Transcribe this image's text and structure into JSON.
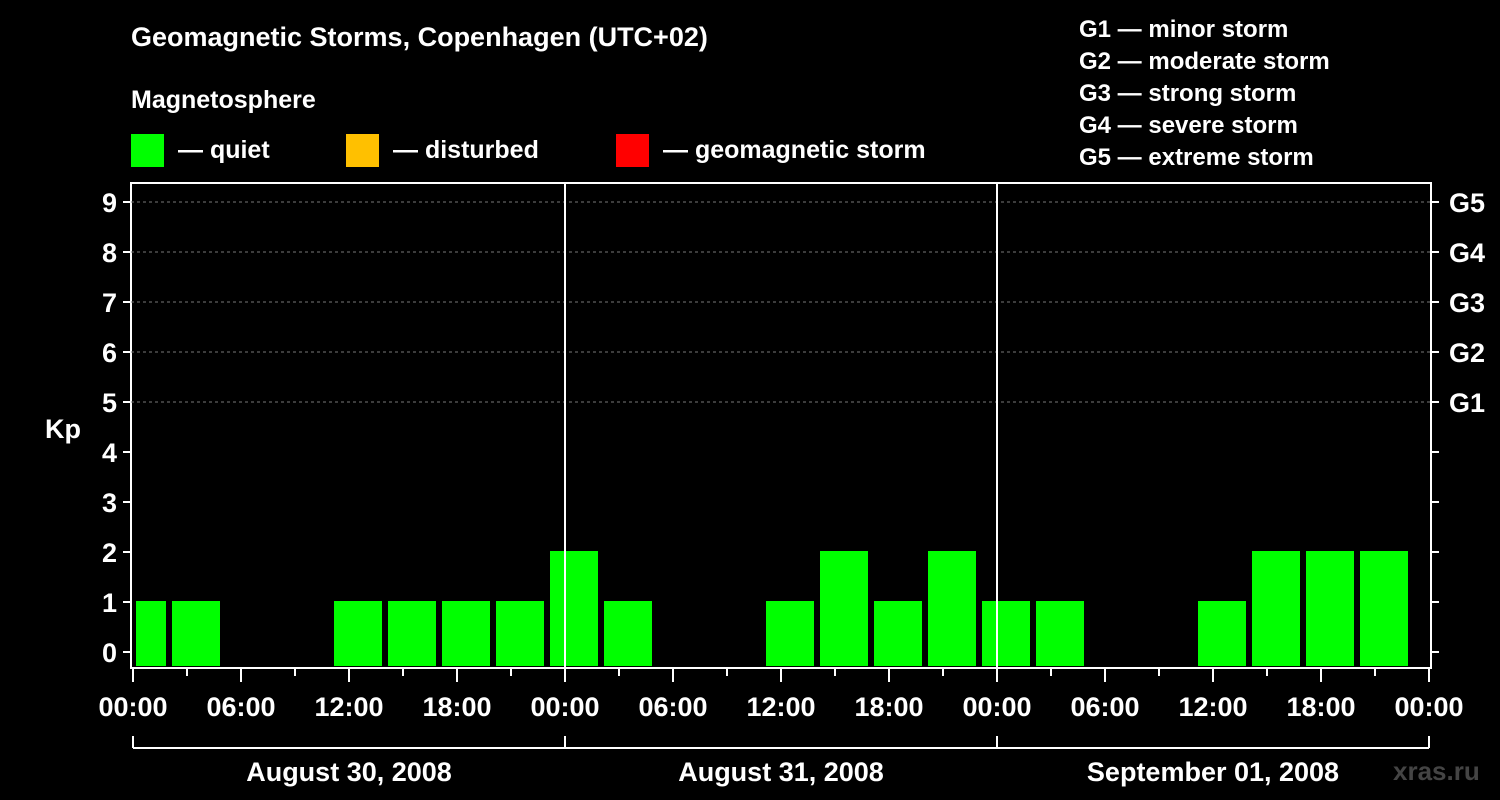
{
  "title": "Geomagnetic Storms, Copenhagen (UTC+02)",
  "magnetosphere_label": "Magnetosphere",
  "legend": [
    {
      "label": "— quiet",
      "color": "#00ff00"
    },
    {
      "label": "— disturbed",
      "color": "#ffc000"
    },
    {
      "label": "— geomagnetic storm",
      "color": "#ff0000"
    }
  ],
  "storm_scale": [
    "G1 — minor storm",
    "G2 — moderate storm",
    "G3 — strong storm",
    "G4 — severe storm",
    "G5 — extreme storm"
  ],
  "watermark": "xras.ru",
  "chart_data": {
    "type": "bar",
    "title": "Geomagnetic Storms, Copenhagen (UTC+02)",
    "ylabel": "Kp",
    "ylim": [
      0,
      9
    ],
    "yticks": [
      "0",
      "1",
      "2",
      "3",
      "4",
      "5",
      "6",
      "7",
      "8",
      "9"
    ],
    "right_axis_labels": [
      {
        "kp": 5,
        "label": "G1"
      },
      {
        "kp": 6,
        "label": "G2"
      },
      {
        "kp": 7,
        "label": "G3"
      },
      {
        "kp": 8,
        "label": "G4"
      },
      {
        "kp": 9,
        "label": "G5"
      }
    ],
    "x_range_hours": [
      0,
      72
    ],
    "xticks": [
      "00:00",
      "06:00",
      "12:00",
      "18:00",
      "00:00",
      "06:00",
      "12:00",
      "18:00",
      "00:00",
      "06:00",
      "12:00",
      "18:00",
      "00:00"
    ],
    "xtick_hours": [
      0,
      6,
      12,
      18,
      24,
      30,
      36,
      42,
      48,
      54,
      60,
      66,
      72
    ],
    "day_labels": [
      "August 30, 2008",
      "August 31, 2008",
      "September 01, 2008"
    ],
    "series": [
      {
        "name": "Kp",
        "bars": [
          {
            "start_hour": 0,
            "end_hour": 2,
            "value": 1,
            "status": "quiet"
          },
          {
            "start_hour": 2,
            "end_hour": 5,
            "value": 1,
            "status": "quiet"
          },
          {
            "start_hour": 5,
            "end_hour": 8,
            "value": 0,
            "status": "quiet"
          },
          {
            "start_hour": 8,
            "end_hour": 11,
            "value": 0,
            "status": "quiet"
          },
          {
            "start_hour": 11,
            "end_hour": 14,
            "value": 1,
            "status": "quiet"
          },
          {
            "start_hour": 14,
            "end_hour": 17,
            "value": 1,
            "status": "quiet"
          },
          {
            "start_hour": 17,
            "end_hour": 20,
            "value": 1,
            "status": "quiet"
          },
          {
            "start_hour": 20,
            "end_hour": 23,
            "value": 1,
            "status": "quiet"
          },
          {
            "start_hour": 23,
            "end_hour": 26,
            "value": 2,
            "status": "quiet"
          },
          {
            "start_hour": 26,
            "end_hour": 29,
            "value": 1,
            "status": "quiet"
          },
          {
            "start_hour": 29,
            "end_hour": 32,
            "value": 0,
            "status": "quiet"
          },
          {
            "start_hour": 32,
            "end_hour": 35,
            "value": 0,
            "status": "quiet"
          },
          {
            "start_hour": 35,
            "end_hour": 38,
            "value": 1,
            "status": "quiet"
          },
          {
            "start_hour": 38,
            "end_hour": 41,
            "value": 2,
            "status": "quiet"
          },
          {
            "start_hour": 41,
            "end_hour": 44,
            "value": 1,
            "status": "quiet"
          },
          {
            "start_hour": 44,
            "end_hour": 47,
            "value": 2,
            "status": "quiet"
          },
          {
            "start_hour": 47,
            "end_hour": 50,
            "value": 1,
            "status": "quiet"
          },
          {
            "start_hour": 50,
            "end_hour": 53,
            "value": 1,
            "status": "quiet"
          },
          {
            "start_hour": 53,
            "end_hour": 56,
            "value": 0,
            "status": "quiet"
          },
          {
            "start_hour": 56,
            "end_hour": 59,
            "value": 0,
            "status": "quiet"
          },
          {
            "start_hour": 59,
            "end_hour": 62,
            "value": 1,
            "status": "quiet"
          },
          {
            "start_hour": 62,
            "end_hour": 65,
            "value": 2,
            "status": "quiet"
          },
          {
            "start_hour": 65,
            "end_hour": 68,
            "value": 2,
            "status": "quiet"
          },
          {
            "start_hour": 68,
            "end_hour": 71,
            "value": 2,
            "status": "quiet"
          }
        ]
      }
    ],
    "status_colors": {
      "quiet": "#00ff00",
      "disturbed": "#ffc000",
      "storm": "#ff0000"
    },
    "grid": true
  }
}
